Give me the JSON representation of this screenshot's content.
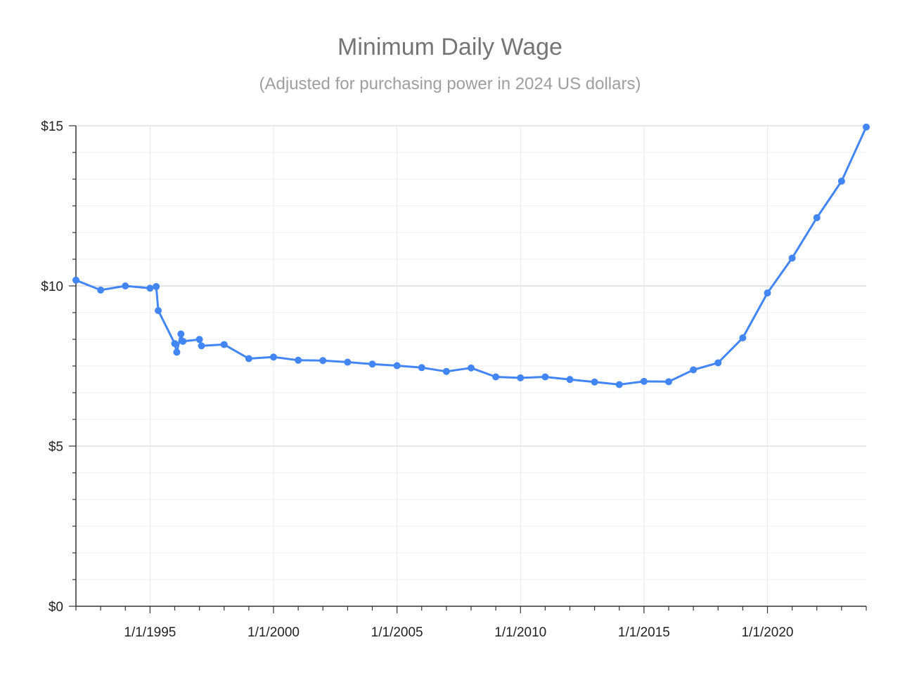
{
  "chart_data": {
    "type": "line",
    "title": "Minimum Daily Wage",
    "subtitle": "(Adjusted for purchasing power in 2024 US dollars)",
    "xlabel": "",
    "ylabel": "",
    "x_range": [
      "1992-01-01",
      "2024-01-01"
    ],
    "ylim": [
      0,
      15
    ],
    "y_ticks": [
      {
        "value": 0,
        "label": "$0"
      },
      {
        "value": 5,
        "label": "$5"
      },
      {
        "value": 10,
        "label": "$10"
      },
      {
        "value": 15,
        "label": "$15"
      }
    ],
    "x_ticks": [
      {
        "value": "1995-01-01",
        "label": "1/1/1995"
      },
      {
        "value": "2000-01-01",
        "label": "1/1/2000"
      },
      {
        "value": "2005-01-01",
        "label": "1/1/2005"
      },
      {
        "value": "2010-01-01",
        "label": "1/1/2010"
      },
      {
        "value": "2015-01-01",
        "label": "1/1/2015"
      },
      {
        "value": "2020-01-01",
        "label": "1/1/2020"
      }
    ],
    "grid": true,
    "series": [
      {
        "color": "#4285f4",
        "points": [
          {
            "x": "1992-01-01",
            "y": 10.18
          },
          {
            "x": "1993-01-01",
            "y": 9.87
          },
          {
            "x": "1994-01-01",
            "y": 10.0
          },
          {
            "x": "1995-01-01",
            "y": 9.93
          },
          {
            "x": "1995-04-01",
            "y": 9.98
          },
          {
            "x": "1995-05-01",
            "y": 9.23
          },
          {
            "x": "1996-01-01",
            "y": 8.2
          },
          {
            "x": "1996-02-01",
            "y": 7.93
          },
          {
            "x": "1996-04-01",
            "y": 8.5
          },
          {
            "x": "1996-05-01",
            "y": 8.27
          },
          {
            "x": "1997-01-01",
            "y": 8.33
          },
          {
            "x": "1997-02-01",
            "y": 8.13
          },
          {
            "x": "1998-01-01",
            "y": 8.17
          },
          {
            "x": "1999-01-01",
            "y": 7.73
          },
          {
            "x": "2000-01-01",
            "y": 7.78
          },
          {
            "x": "2001-01-01",
            "y": 7.68
          },
          {
            "x": "2002-01-01",
            "y": 7.67
          },
          {
            "x": "2003-01-01",
            "y": 7.62
          },
          {
            "x": "2004-01-01",
            "y": 7.56
          },
          {
            "x": "2005-01-01",
            "y": 7.51
          },
          {
            "x": "2006-01-01",
            "y": 7.45
          },
          {
            "x": "2007-01-01",
            "y": 7.33
          },
          {
            "x": "2008-01-01",
            "y": 7.44
          },
          {
            "x": "2009-01-01",
            "y": 7.16
          },
          {
            "x": "2010-01-01",
            "y": 7.13
          },
          {
            "x": "2011-01-01",
            "y": 7.16
          },
          {
            "x": "2012-01-01",
            "y": 7.08
          },
          {
            "x": "2013-01-01",
            "y": 7.0
          },
          {
            "x": "2014-01-01",
            "y": 6.92
          },
          {
            "x": "2015-01-01",
            "y": 7.02
          },
          {
            "x": "2016-01-01",
            "y": 7.01
          },
          {
            "x": "2017-01-01",
            "y": 7.38
          },
          {
            "x": "2018-01-01",
            "y": 7.6
          },
          {
            "x": "2019-01-01",
            "y": 8.38
          },
          {
            "x": "2020-01-01",
            "y": 9.78
          },
          {
            "x": "2021-01-01",
            "y": 10.87
          },
          {
            "x": "2022-01-01",
            "y": 12.13
          },
          {
            "x": "2023-01-01",
            "y": 13.27
          },
          {
            "x": "2024-01-01",
            "y": 14.96
          }
        ]
      }
    ]
  }
}
